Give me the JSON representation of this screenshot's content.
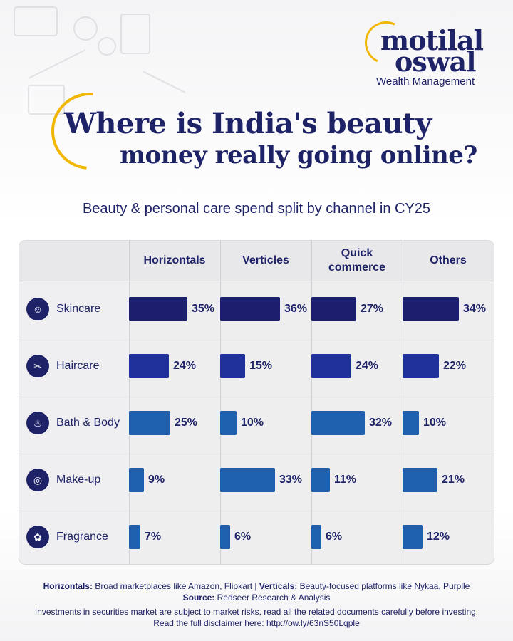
{
  "brand": {
    "name_line1": "motilal",
    "name_line2": "oswal",
    "division": "Wealth Management"
  },
  "title_line1": "Where is India's beauty",
  "title_line2": "money really going online?",
  "subtitle": "Beauty & personal care spend split by channel in CY25",
  "colors": {
    "navy": "#1e2266",
    "accent_gold": "#f2b705",
    "bar_dark": "#1b1f6e",
    "bar_mid": "#20309a",
    "bar_light": "#1e5fae"
  },
  "chart_data": {
    "type": "table",
    "columns": [
      "Horizontals",
      "Verticles",
      "Quick commerce",
      "Others"
    ],
    "rows": [
      {
        "label": "Skincare",
        "icon": "face-icon",
        "values": [
          35,
          36,
          27,
          34
        ]
      },
      {
        "label": "Haircare",
        "icon": "hair-icon",
        "values": [
          24,
          15,
          24,
          22
        ]
      },
      {
        "label": "Bath & Body",
        "icon": "bathtub-icon",
        "values": [
          25,
          10,
          32,
          10
        ]
      },
      {
        "label": "Make-up",
        "icon": "mirror-icon",
        "values": [
          9,
          33,
          11,
          21
        ]
      },
      {
        "label": "Fragrance",
        "icon": "perfume-icon",
        "values": [
          7,
          6,
          6,
          12
        ]
      }
    ],
    "unit": "%"
  },
  "footer": {
    "line1_key1": "Horizontals:",
    "line1_val1": " Broad marketplaces like Amazon, Flipkart  |  ",
    "line1_key2": "Verticals:",
    "line1_val2": " Beauty-focused platforms like Nykaa, Purplle",
    "source_key": "Source:",
    "source_val": " Redseer Research & Analysis",
    "disclaimer": "Investments in securities market are subject to market risks, read all the related documents carefully before investing.",
    "link_line": "Read the full disclaimer here: http://ow.ly/63nS50Lqple"
  }
}
